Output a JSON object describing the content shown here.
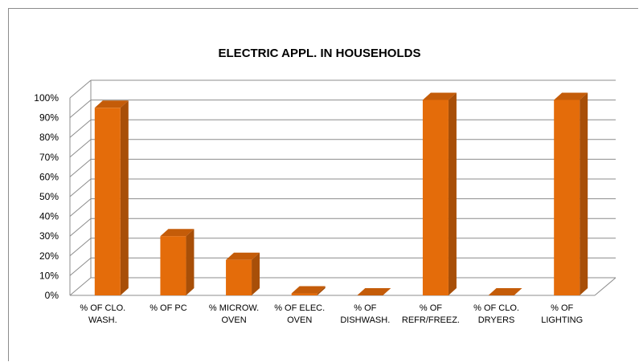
{
  "chart_data": {
    "type": "bar",
    "title": "ELECTRIC APPL. IN HOUSEHOLDS",
    "categories": [
      [
        "% OF CLO.",
        "WASH."
      ],
      [
        "% OF PC"
      ],
      [
        "% MICROW.",
        "OVEN"
      ],
      [
        "% OF ELEC.",
        "OVEN"
      ],
      [
        "% OF",
        "DISHWASH."
      ],
      [
        "% OF",
        "REFR/FREEZ."
      ],
      [
        "% OF CLO.",
        "DRYERS"
      ],
      [
        "% OF",
        "LIGHTING"
      ]
    ],
    "values": [
      95,
      30,
      18,
      1,
      0,
      99,
      0,
      99
    ],
    "ylim": [
      0,
      100
    ],
    "yticks": [
      "0%",
      "10%",
      "20%",
      "30%",
      "40%",
      "50%",
      "60%",
      "70%",
      "80%",
      "90%",
      "100%"
    ],
    "grid": true,
    "colors": {
      "front": "#e46c0a",
      "side": "#a84f08",
      "top": "#c45c09"
    }
  }
}
